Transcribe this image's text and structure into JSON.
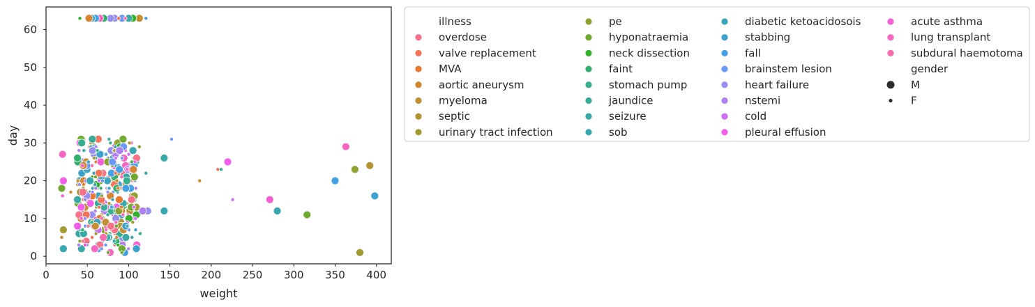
{
  "chart_data": {
    "type": "scatter",
    "title": "",
    "xlabel": "weight",
    "ylabel": "day",
    "xlim": [
      0,
      418
    ],
    "ylim": [
      -2,
      66
    ],
    "xticks": [
      0,
      50,
      100,
      150,
      200,
      250,
      300,
      350,
      400
    ],
    "yticks": [
      0,
      10,
      20,
      30,
      40,
      50,
      60
    ],
    "grid": false,
    "hue": "illness",
    "size": "gender",
    "legend": {
      "placement": "outside-top-right",
      "hue_title": "illness",
      "size_title": "gender",
      "size_levels": [
        "M",
        "F"
      ]
    },
    "categories": [
      {
        "name": "overdose",
        "color": "#f77189"
      },
      {
        "name": "valve replacement",
        "color": "#f3745c"
      },
      {
        "name": "MVA",
        "color": "#e9792f"
      },
      {
        "name": "aortic aneurysm",
        "color": "#d58431"
      },
      {
        "name": "myeloma",
        "color": "#c38d32"
      },
      {
        "name": "septic",
        "color": "#b29532"
      },
      {
        "name": "urinary tract infection",
        "color": "#a19b32"
      },
      {
        "name": "pe",
        "color": "#8ea231"
      },
      {
        "name": "hyponatraemia",
        "color": "#6fa92f"
      },
      {
        "name": "neck dissection",
        "color": "#32b12d"
      },
      {
        "name": "faint",
        "color": "#34af6d"
      },
      {
        "name": "stomach pump",
        "color": "#36ad8c"
      },
      {
        "name": "jaundice",
        "color": "#37aa9a"
      },
      {
        "name": "seizure",
        "color": "#38a9a5"
      },
      {
        "name": "sob",
        "color": "#39a7b0"
      },
      {
        "name": "diabetic ketoacidosois",
        "color": "#3ba4bc"
      },
      {
        "name": "stabbing",
        "color": "#3ea1cb"
      },
      {
        "name": "fall",
        "color": "#43a0e3"
      },
      {
        "name": "brainstem lesion",
        "color": "#6b98f4"
      },
      {
        "name": "heart failure",
        "color": "#978ef4"
      },
      {
        "name": "nstemi",
        "color": "#ae80f4"
      },
      {
        "name": "cold",
        "color": "#cd6ef4"
      },
      {
        "name": "pleural effusion",
        "color": "#f15ee7"
      },
      {
        "name": "acute asthma",
        "color": "#f55fd2"
      },
      {
        "name": "lung transplant",
        "color": "#f766c0"
      },
      {
        "name": "subdural haemotoma",
        "color": "#f66cac"
      }
    ],
    "points": [
      {
        "x": 363,
        "y": 29,
        "illness": "lung transplant",
        "gender": "M"
      },
      {
        "x": 374,
        "y": 23,
        "illness": "pe",
        "gender": "M"
      },
      {
        "x": 392,
        "y": 24,
        "illness": "septic",
        "gender": "M"
      },
      {
        "x": 350,
        "y": 20,
        "illness": "fall",
        "gender": "M"
      },
      {
        "x": 398,
        "y": 16,
        "illness": "stabbing",
        "gender": "M"
      },
      {
        "x": 271,
        "y": 15,
        "illness": "acute asthma",
        "gender": "M"
      },
      {
        "x": 280,
        "y": 12,
        "illness": "sob",
        "gender": "M"
      },
      {
        "x": 316,
        "y": 11,
        "illness": "hyponatraemia",
        "gender": "M"
      },
      {
        "x": 380,
        "y": 1,
        "illness": "urinary tract infection",
        "gender": "M"
      },
      {
        "x": 220,
        "y": 25,
        "illness": "pleural effusion",
        "gender": "M"
      },
      {
        "x": 208,
        "y": 23,
        "illness": "valve replacement",
        "gender": "F"
      },
      {
        "x": 212,
        "y": 23,
        "illness": "jaundice",
        "gender": "F"
      },
      {
        "x": 186,
        "y": 20,
        "illness": "myeloma",
        "gender": "F"
      },
      {
        "x": 226,
        "y": 15,
        "illness": "cold",
        "gender": "F"
      },
      {
        "x": 152,
        "y": 31,
        "illness": "brainstem lesion",
        "gender": "F"
      },
      {
        "x": 143,
        "y": 26,
        "illness": "seizure",
        "gender": "M"
      },
      {
        "x": 143,
        "y": 12,
        "illness": "sob",
        "gender": "M"
      },
      {
        "x": 123,
        "y": 12,
        "illness": "heart failure",
        "gender": "M"
      },
      {
        "x": 117,
        "y": 12,
        "illness": "nstemi",
        "gender": "M"
      },
      {
        "x": 20,
        "y": 27,
        "illness": "lung transplant",
        "gender": "M"
      },
      {
        "x": 19,
        "y": 18,
        "illness": "hyponatraemia",
        "gender": "M"
      },
      {
        "x": 21,
        "y": 20,
        "illness": "pleural effusion",
        "gender": "M"
      },
      {
        "x": 21,
        "y": 7,
        "illness": "urinary tract infection",
        "gender": "M"
      },
      {
        "x": 21,
        "y": 2,
        "illness": "sob",
        "gender": "M"
      },
      {
        "x": 20,
        "y": 16,
        "illness": "acute asthma",
        "gender": "F"
      },
      {
        "x": 19,
        "y": 5,
        "illness": "myeloma",
        "gender": "F"
      },
      {
        "x": 30,
        "y": 17,
        "illness": "aortic aneurysm",
        "gender": "F"
      },
      {
        "x": 113,
        "y": 29,
        "illness": "pe",
        "gender": "F"
      },
      {
        "x": 121,
        "y": 22,
        "illness": "seizure",
        "gender": "F"
      },
      {
        "x": 114,
        "y": 6,
        "illness": "stomach pump",
        "gender": "F"
      },
      {
        "x": 113,
        "y": 63,
        "illness": "myeloma",
        "gender": "M"
      },
      {
        "x": 105,
        "y": 63,
        "illness": "neck dissection",
        "gender": "M"
      },
      {
        "x": 100,
        "y": 63,
        "illness": "seizure",
        "gender": "M"
      },
      {
        "x": 92,
        "y": 63,
        "illness": "brainstem lesion",
        "gender": "M"
      },
      {
        "x": 83,
        "y": 63,
        "illness": "heart failure",
        "gender": "M"
      },
      {
        "x": 78,
        "y": 63,
        "illness": "heart failure",
        "gender": "M"
      },
      {
        "x": 70,
        "y": 63,
        "illness": "faint",
        "gender": "M"
      },
      {
        "x": 65,
        "y": 63,
        "illness": "lung transplant",
        "gender": "M"
      },
      {
        "x": 60,
        "y": 63,
        "illness": "fall",
        "gender": "M"
      },
      {
        "x": 55,
        "y": 63,
        "illness": "stabbing",
        "gender": "M"
      },
      {
        "x": 52,
        "y": 63,
        "illness": "aortic aneurysm",
        "gender": "M"
      },
      {
        "x": 41,
        "y": 63,
        "illness": "neck dissection",
        "gender": "F"
      },
      {
        "x": 88,
        "y": 63,
        "illness": "valve replacement",
        "gender": "F"
      },
      {
        "x": 96,
        "y": 63,
        "illness": "subdural haemotoma",
        "gender": "F"
      },
      {
        "x": 121,
        "y": 63,
        "illness": "fall",
        "gender": "F"
      }
    ],
    "cluster": {
      "x_range": [
        38,
        110
      ],
      "bands": [
        {
          "y_range": [
            10,
            31
          ],
          "n": 260
        },
        {
          "y_range": [
            1,
            10
          ],
          "n": 90
        }
      ],
      "seed": 7,
      "note_order": "overdose..subdural haemotoma cycled"
    }
  },
  "legend_labels": {
    "illness": "illness",
    "gender": "gender",
    "m": "M",
    "f": "F"
  }
}
